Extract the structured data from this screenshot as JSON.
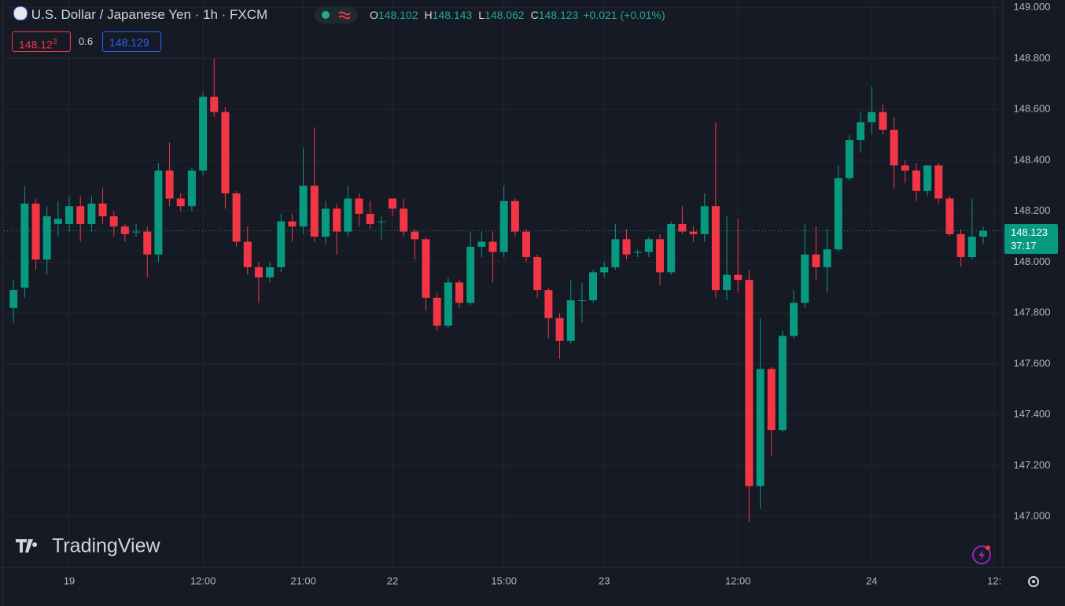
{
  "header": {
    "symbol": "U.S. Dollar / Japanese Yen · 1h · FXCM",
    "ohlc": [
      {
        "label": "O",
        "value": "148.102"
      },
      {
        "label": "H",
        "value": "148.143"
      },
      {
        "label": "L",
        "value": "148.062"
      },
      {
        "label": "C",
        "value": "148.123"
      }
    ],
    "change": "+0.021 (+0.01%)",
    "sell": {
      "price": "148.12",
      "pip": "3"
    },
    "spread": "0.6",
    "buy": "148.129"
  },
  "watermark": "TradingView",
  "last_price_tag": {
    "price": "148.123",
    "countdown": "37:17"
  },
  "chart_data": {
    "type": "candlestick",
    "up_color": "#089981",
    "down_color": "#f23645",
    "grid": true,
    "ylim": [
      146.8,
      149.03
    ],
    "yticks": [
      {
        "value": 147,
        "label": "147.000"
      },
      {
        "value": 147.2,
        "label": "147.200"
      },
      {
        "value": 147.4,
        "label": "147.400"
      },
      {
        "value": 147.6,
        "label": "147.600"
      },
      {
        "value": 147.8,
        "label": "147.800"
      },
      {
        "value": 148,
        "label": "148.000"
      },
      {
        "value": 148.2,
        "label": "148.200"
      },
      {
        "value": 148.4,
        "label": "148.400"
      },
      {
        "value": 148.6,
        "label": "148.600"
      },
      {
        "value": 148.8,
        "label": "148.800"
      },
      {
        "value": 149,
        "label": "149.000"
      }
    ],
    "categories": [
      null,
      null,
      null,
      null,
      null,
      "19",
      null,
      null,
      null,
      null,
      null,
      null,
      null,
      null,
      null,
      null,
      null,
      "12:00",
      null,
      null,
      null,
      null,
      null,
      null,
      null,
      null,
      "21:00",
      null,
      null,
      null,
      null,
      null,
      null,
      null,
      "22",
      null,
      null,
      null,
      null,
      null,
      null,
      null,
      null,
      null,
      "15:00",
      null,
      null,
      null,
      null,
      null,
      null,
      null,
      null,
      "23",
      null,
      null,
      null,
      null,
      null,
      null,
      null,
      null,
      null,
      null,
      null,
      "12:00",
      null,
      null,
      null,
      null,
      null,
      null,
      null,
      null,
      null,
      null,
      null,
      "24",
      null,
      null,
      null,
      null,
      null,
      null,
      null,
      null,
      null,
      null
    ],
    "cut_label": "12:",
    "open": [
      147.82,
      147.9,
      148.23,
      148.01,
      148.15,
      148.15,
      148.22,
      148.15,
      148.23,
      148.18,
      148.14,
      148.12,
      148.12,
      148.03,
      148.36,
      148.25,
      148.22,
      148.36,
      148.65,
      148.59,
      148.27,
      148.08,
      147.98,
      147.94,
      147.98,
      148.16,
      148.14,
      148.3,
      148.1,
      148.21,
      148.12,
      148.25,
      148.19,
      148.16,
      148.25,
      148.21,
      148.12,
      148.09,
      147.86,
      147.75,
      147.92,
      147.84,
      148.06,
      148.08,
      148.04,
      148.24,
      148.12,
      148.02,
      147.89,
      147.78,
      147.69,
      147.85,
      147.85,
      147.96,
      147.98,
      148.09,
      148.04,
      148.04,
      148.09,
      147.96,
      148.15,
      148.12,
      148.11,
      148.22,
      147.89,
      147.95,
      147.93,
      147.12,
      147.58,
      147.34,
      147.71,
      147.84,
      148.03,
      147.98,
      148.05,
      148.33,
      148.48,
      148.55,
      148.59,
      148.52,
      148.38,
      148.36,
      148.28,
      148.38,
      148.25,
      148.11,
      148.02,
      148.1
    ],
    "high": [
      147.93,
      148.3,
      148.25,
      148.22,
      148.24,
      148.26,
      148.26,
      148.26,
      148.29,
      148.2,
      148.15,
      148.15,
      148.14,
      148.39,
      148.47,
      148.27,
      148.37,
      148.67,
      148.8,
      148.61,
      148.28,
      148.14,
      148.0,
      148.0,
      148.19,
      148.19,
      148.45,
      148.53,
      148.24,
      148.23,
      148.3,
      148.27,
      148.24,
      148.18,
      148.25,
      148.25,
      148.13,
      148.1,
      147.88,
      147.94,
      147.93,
      148.12,
      148.12,
      148.12,
      148.3,
      148.25,
      148.13,
      148.03,
      147.9,
      147.8,
      147.93,
      147.92,
      147.97,
      148.0,
      148.15,
      148.13,
      148.05,
      148.1,
      148.11,
      148.16,
      148.22,
      148.14,
      148.27,
      148.55,
      148.18,
      148.17,
      147.97,
      147.78,
      147.59,
      147.73,
      147.89,
      148.15,
      148.14,
      148.13,
      148.38,
      148.5,
      148.59,
      148.69,
      148.62,
      148.57,
      148.4,
      148.39,
      148.38,
      148.39,
      148.26,
      148.13,
      148.25,
      148.14
    ],
    "low": [
      147.76,
      147.86,
      147.97,
      147.95,
      148.1,
      148.12,
      148.08,
      148.12,
      148.15,
      148.1,
      148.08,
      148.1,
      147.94,
      148.0,
      148.22,
      148.2,
      148.2,
      148.34,
      148.57,
      148.21,
      148.06,
      147.95,
      147.84,
      147.92,
      147.96,
      148.08,
      148.11,
      148.08,
      148.07,
      148.03,
      148.1,
      148.14,
      148.13,
      148.09,
      148.18,
      148.1,
      148.01,
      147.81,
      147.73,
      147.74,
      147.82,
      147.83,
      148.02,
      147.92,
      148.02,
      148.1,
      148.0,
      147.86,
      147.7,
      147.62,
      147.68,
      147.76,
      147.84,
      147.94,
      147.97,
      148.01,
      148.02,
      148.02,
      147.91,
      147.95,
      148.11,
      148.08,
      148.08,
      147.86,
      147.85,
      147.88,
      146.98,
      147.03,
      147.24,
      147.33,
      147.7,
      147.82,
      147.93,
      147.88,
      148.04,
      148.32,
      148.43,
      148.5,
      148.5,
      148.29,
      148.31,
      148.24,
      148.26,
      148.23,
      148.1,
      147.98,
      148.01,
      148.07
    ],
    "close": [
      147.89,
      148.23,
      148.01,
      148.18,
      148.17,
      148.22,
      148.15,
      148.23,
      148.18,
      148.14,
      148.11,
      148.12,
      148.03,
      148.36,
      148.25,
      148.22,
      148.36,
      148.65,
      148.59,
      148.27,
      148.08,
      147.98,
      147.94,
      147.98,
      148.16,
      148.14,
      148.3,
      148.1,
      148.21,
      148.12,
      148.25,
      148.19,
      148.15,
      148.16,
      148.21,
      148.12,
      148.09,
      147.86,
      147.75,
      147.92,
      147.84,
      148.06,
      148.08,
      148.04,
      148.24,
      148.12,
      148.02,
      147.89,
      147.78,
      147.69,
      147.85,
      147.85,
      147.96,
      147.98,
      148.09,
      148.03,
      148.04,
      148.09,
      147.96,
      148.15,
      148.12,
      148.11,
      148.22,
      147.89,
      147.95,
      147.93,
      147.12,
      147.58,
      147.34,
      147.71,
      147.84,
      148.03,
      147.98,
      148.05,
      148.33,
      148.48,
      148.55,
      148.59,
      148.52,
      148.38,
      148.36,
      148.28,
      148.38,
      148.25,
      148.11,
      148.02,
      148.1,
      148.123
    ]
  }
}
